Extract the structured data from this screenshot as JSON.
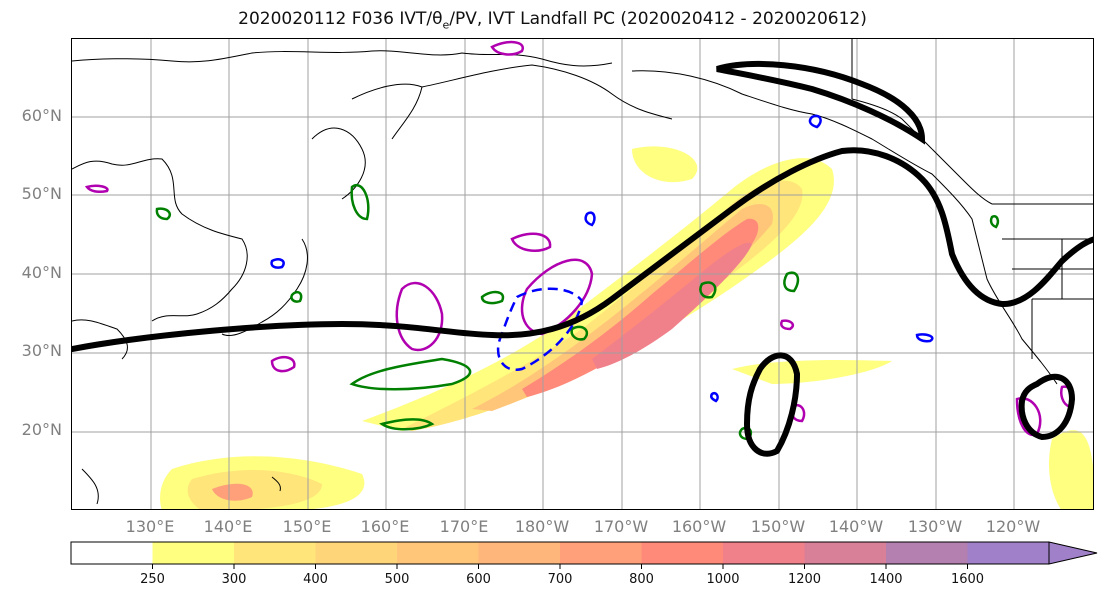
{
  "title": {
    "prefix": "2020020112 F036 IVT/θ",
    "sub": "e",
    "suffix": "/PV, IVT Landfall PC (2020020412 - 2020020612)"
  },
  "lat_ticks": [
    "60°N",
    "50°N",
    "40°N",
    "30°N",
    "20°N"
  ],
  "lon_ticks": [
    "130°E",
    "140°E",
    "150°E",
    "160°E",
    "170°E",
    "180°W",
    "170°W",
    "160°W",
    "150°W",
    "140°W",
    "130°W",
    "120°W"
  ],
  "colorbar": {
    "ticks": [
      "250",
      "300",
      "400",
      "500",
      "600",
      "700",
      "800",
      "1000",
      "1200",
      "1400",
      "1600"
    ],
    "colors": [
      "#ffffff",
      "#ffff80",
      "#ffe57a",
      "#ffd57a",
      "#ffc67a",
      "#ffb67a",
      "#ffa07a",
      "#ff8a7a",
      "#f0808a",
      "#d88098",
      "#b480b0",
      "#a080c8"
    ]
  },
  "colors": {
    "jet_contour": "#000000",
    "theta_e": "#008000",
    "pv_positive": "#b000b0",
    "pv_negative": "#0000ff"
  }
}
